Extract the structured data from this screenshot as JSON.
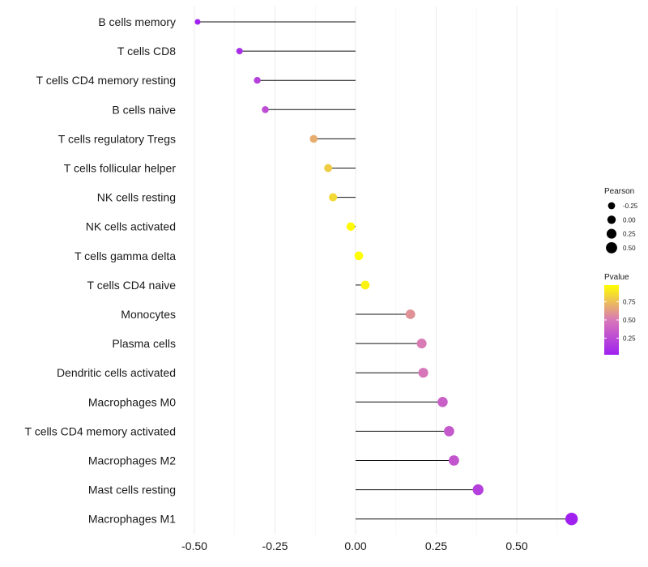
{
  "chart_data": {
    "type": "lollipop",
    "orientation": "horizontal",
    "xlabel": "",
    "ylabel": "",
    "xlim": [
      -0.5,
      0.68
    ],
    "xticks": [
      -0.5,
      -0.25,
      0.0,
      0.25,
      0.5
    ],
    "xtick_labels": [
      "-0.50",
      "-0.25",
      "0.00",
      "0.25",
      "0.50"
    ],
    "grid": true,
    "points": [
      {
        "category": "B cells memory",
        "pearson": -0.49,
        "pvalue": 0.02
      },
      {
        "category": "T cells CD8",
        "pearson": -0.36,
        "pvalue": 0.1
      },
      {
        "category": "T cells CD4 memory resting",
        "pearson": -0.305,
        "pvalue": 0.2
      },
      {
        "category": "B cells naive",
        "pearson": -0.28,
        "pvalue": 0.27
      },
      {
        "category": "T cells regulatory  Tregs ",
        "pearson": -0.13,
        "pvalue": 0.69
      },
      {
        "category": "T cells follicular helper",
        "pearson": -0.085,
        "pvalue": 0.8
      },
      {
        "category": "NK cells resting",
        "pearson": -0.07,
        "pvalue": 0.84
      },
      {
        "category": "NK cells activated",
        "pearson": -0.015,
        "pvalue": 0.96
      },
      {
        "category": "T cells gamma delta",
        "pearson": 0.01,
        "pvalue": 0.98
      },
      {
        "category": "T cells CD4 naive",
        "pearson": 0.03,
        "pvalue": 0.93
      },
      {
        "category": "Monocytes",
        "pearson": 0.17,
        "pvalue": 0.59
      },
      {
        "category": "Plasma cells",
        "pearson": 0.205,
        "pvalue": 0.51
      },
      {
        "category": "Dendritic cells activated",
        "pearson": 0.21,
        "pvalue": 0.49
      },
      {
        "category": "Macrophages M0",
        "pearson": 0.27,
        "pvalue": 0.37
      },
      {
        "category": "T cells CD4 memory activated",
        "pearson": 0.29,
        "pvalue": 0.33
      },
      {
        "category": "Macrophages M2",
        "pearson": 0.305,
        "pvalue": 0.31
      },
      {
        "category": "Mast cells resting",
        "pearson": 0.38,
        "pvalue": 0.19
      },
      {
        "category": "Macrophages M1",
        "pearson": 0.67,
        "pvalue": 0.02
      }
    ],
    "legend_size": {
      "title": "Pearson",
      "values": [
        -0.25,
        0.0,
        0.25,
        0.5
      ],
      "labels": [
        "-0.25",
        "0.00",
        "0.25",
        "0.50"
      ]
    },
    "legend_color": {
      "title": "Pvalue",
      "ticks": [
        0.25,
        0.5,
        0.75
      ],
      "tick_labels": [
        "0.25",
        "0.50",
        "0.75"
      ],
      "range": [
        0.02,
        0.98
      ],
      "low_color": "#a020f0",
      "mid_color": "#d878b8",
      "high_color": "#ffff00"
    }
  }
}
